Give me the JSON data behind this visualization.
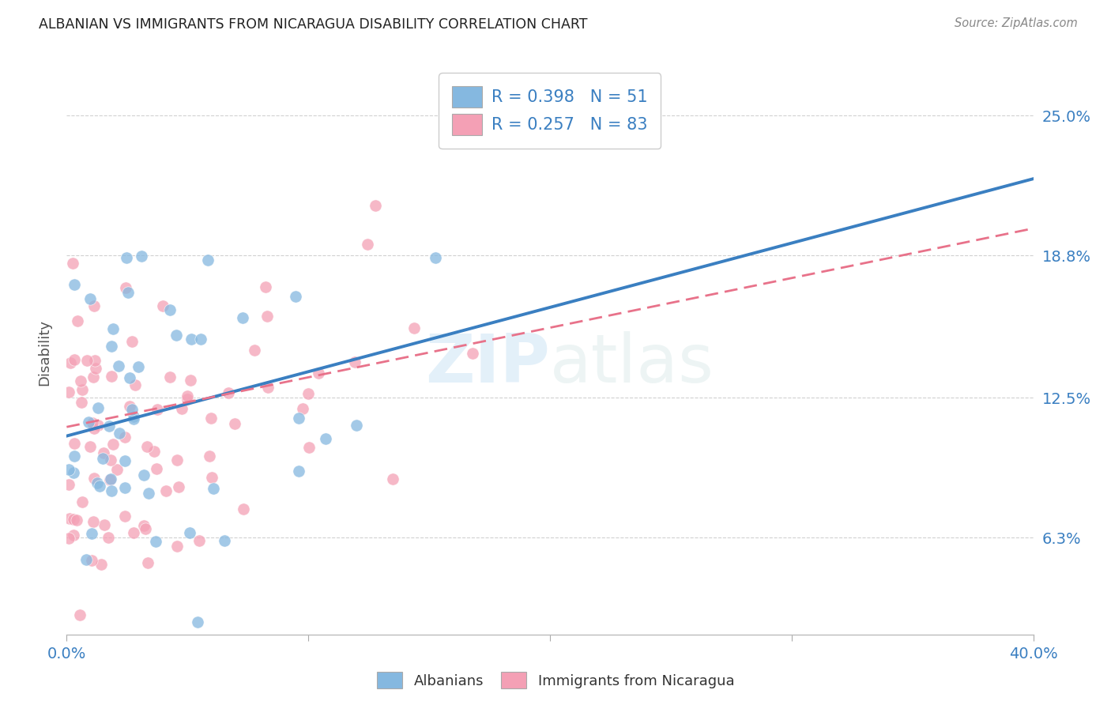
{
  "title": "ALBANIAN VS IMMIGRANTS FROM NICARAGUA DISABILITY CORRELATION CHART",
  "source": "Source: ZipAtlas.com",
  "ylabel": "Disability",
  "ytick_labels": [
    "6.3%",
    "12.5%",
    "18.8%",
    "25.0%"
  ],
  "ytick_values": [
    0.063,
    0.125,
    0.188,
    0.25
  ],
  "xlim": [
    0.0,
    0.4
  ],
  "ylim": [
    0.02,
    0.27
  ],
  "R1": 0.398,
  "N1": 51,
  "R2": 0.257,
  "N2": 83,
  "color_blue": "#85b8e0",
  "color_pink": "#f4a0b5",
  "color_line_blue": "#3a7fc1",
  "color_line_pink": "#e8728a",
  "watermark_zip": "ZIP",
  "watermark_atlas": "atlas",
  "legend_loc_label1": "Albanians",
  "legend_loc_label2": "Immigrants from Nicaragua",
  "line_blue_y0": 0.108,
  "line_blue_y1": 0.222,
  "line_pink_y0": 0.112,
  "line_pink_y1": 0.2
}
